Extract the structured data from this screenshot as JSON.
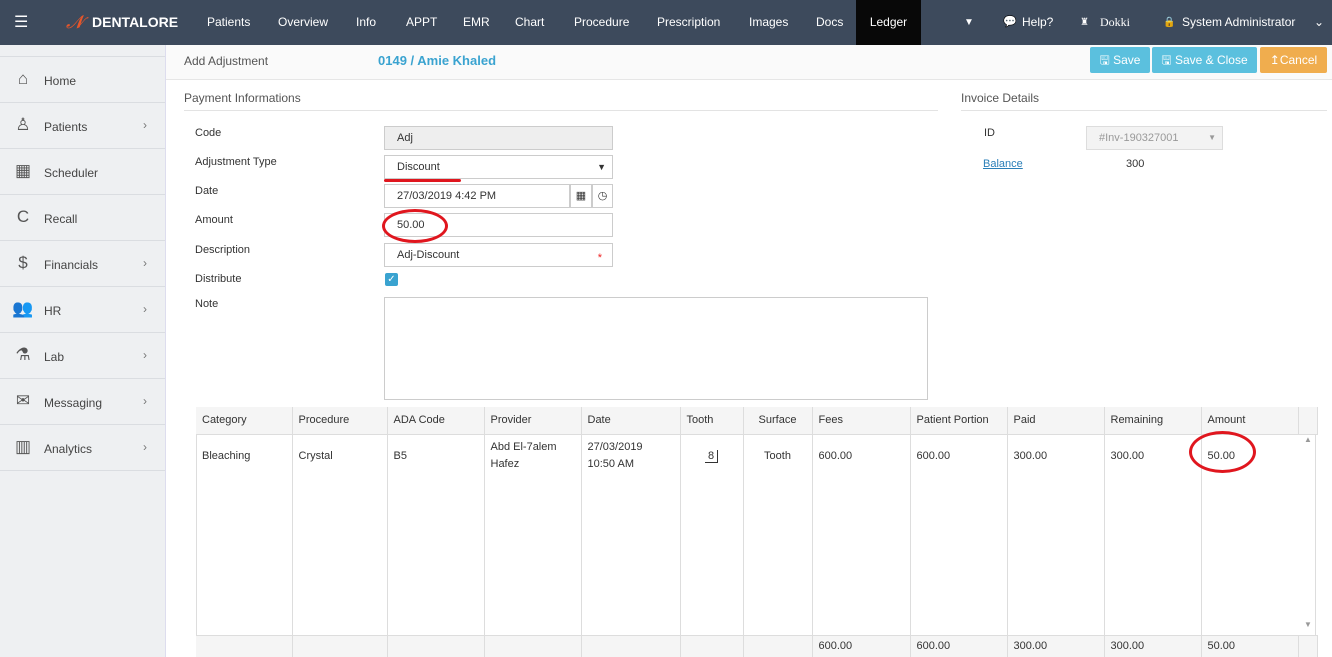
{
  "topbar": {
    "brand": "DENTALORE",
    "nav": [
      "Patients",
      "Overview",
      "Info",
      "APPT",
      "EMR",
      "Chart",
      "Procedure",
      "Prescription",
      "Images",
      "Docs",
      "Ledger"
    ],
    "active": "Ledger",
    "help": "Help?",
    "clinic": "Dokki",
    "user": "System Administrator"
  },
  "sidebar": {
    "items": [
      {
        "label": "Home",
        "icon": "home-icon"
      },
      {
        "label": "Patients",
        "icon": "person-icon",
        "chevron": true
      },
      {
        "label": "Scheduler",
        "icon": "calendar-icon"
      },
      {
        "label": "Recall",
        "icon": "recall-icon"
      },
      {
        "label": "Financials",
        "icon": "dollar-icon",
        "chevron": true
      },
      {
        "label": "HR",
        "icon": "users-icon",
        "chevron": true
      },
      {
        "label": "Lab",
        "icon": "flask-icon",
        "chevron": true
      },
      {
        "label": "Messaging",
        "icon": "envelope-icon",
        "chevron": true
      },
      {
        "label": "Analytics",
        "icon": "chart-icon",
        "chevron": true
      }
    ]
  },
  "header": {
    "title": "Add Adjustment",
    "patient": "0149 / Amie Khaled",
    "save": "Save",
    "save_close": "Save & Close",
    "cancel": "Cancel"
  },
  "payment": {
    "title": "Payment Informations",
    "code_label": "Code",
    "code": "Adj",
    "type_label": "Adjustment Type",
    "type": "Discount",
    "date_label": "Date",
    "date": "27/03/2019 4:42 PM",
    "amount_label": "Amount",
    "amount": "50.00",
    "desc_label": "Description",
    "desc": "Adj-Discount",
    "distribute_label": "Distribute",
    "distribute": true,
    "note_label": "Note",
    "note": ""
  },
  "invoice": {
    "title": "Invoice Details",
    "id_label": "ID",
    "id": "#Inv-190327001",
    "balance_label": "Balance",
    "balance": "300"
  },
  "table": {
    "headers": [
      "Category",
      "Procedure",
      "ADA Code",
      "Provider",
      "Date",
      "Tooth",
      "Surface",
      "Fees",
      "Patient Portion",
      "Paid",
      "Remaining",
      "Amount"
    ],
    "rows": [
      {
        "category": "Bleaching",
        "procedure": "Crystal",
        "ada": "B5",
        "provider1": "Abd El-7alem",
        "provider2": "Hafez",
        "date1": "27/03/2019",
        "date2": "10:50 AM",
        "tooth": "8",
        "surface": "Tooth",
        "fees": "600.00",
        "portion": "600.00",
        "paid": "300.00",
        "remaining": "300.00",
        "amount": "50.00"
      }
    ],
    "totals": {
      "fees": "600.00",
      "portion": "600.00",
      "paid": "300.00",
      "remaining": "300.00",
      "amount": "50.00"
    }
  },
  "colors": {
    "topbar": "#3d4a5c",
    "accent": "#5bc0de",
    "cancel": "#f0ad4e",
    "annotation": "#e0161e"
  }
}
